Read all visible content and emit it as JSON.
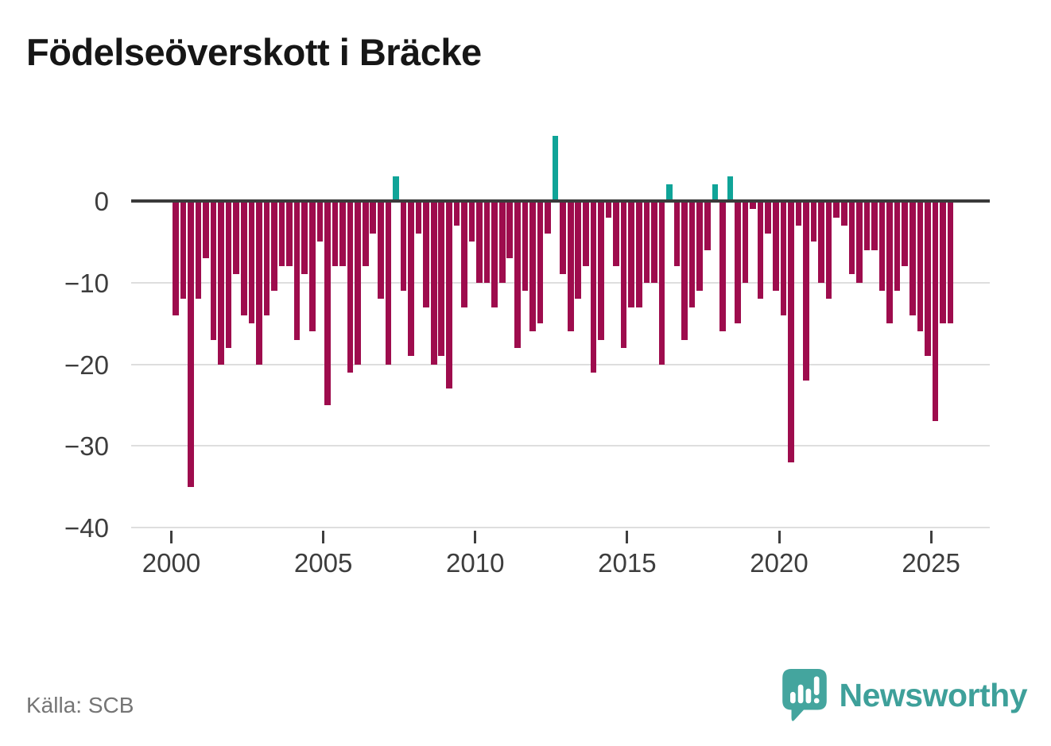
{
  "title": "Födelseöverskott i Bräcke",
  "source": "Källa: SCB",
  "brand": {
    "name": "Newsworthy",
    "color": "#3ea09a"
  },
  "chart_data": {
    "type": "bar",
    "title": "Födelseöverskott i Bräcke",
    "xlabel": "",
    "ylabel": "",
    "frequency": "quarterly",
    "start_year": 2000,
    "start_quarter": 1,
    "x_tick_labels": [
      "2000",
      "2005",
      "2010",
      "2015",
      "2020",
      "2025"
    ],
    "y_tick_labels": [
      "0",
      "−10",
      "−20",
      "−30",
      "−40"
    ],
    "ylim": [
      -40,
      8
    ],
    "grid": true,
    "legend": false,
    "colors": {
      "negative": "#9e0c4d",
      "positive": "#10a498"
    },
    "values": [
      -14,
      -12,
      -35,
      -12,
      -7,
      -17,
      -20,
      -18,
      -9,
      -14,
      -15,
      -20,
      -14,
      -11,
      -8,
      -8,
      -17,
      -9,
      -16,
      -5,
      -25,
      -8,
      -8,
      -21,
      -20,
      -8,
      -4,
      -12,
      -20,
      3,
      -11,
      -19,
      -4,
      -13,
      -20,
      -19,
      -23,
      -3,
      -13,
      -5,
      -10,
      -10,
      -13,
      -10,
      -7,
      -18,
      -11,
      -16,
      -15,
      -4,
      8,
      -9,
      -16,
      -12,
      -8,
      -21,
      -17,
      -2,
      -8,
      -18,
      -13,
      -13,
      -10,
      -10,
      -20,
      2,
      -8,
      -17,
      -13,
      -11,
      -6,
      2,
      -16,
      3,
      -15,
      -10,
      -1,
      -12,
      -4,
      -11,
      -14,
      -32,
      -3,
      -22,
      -5,
      -10,
      -12,
      -2,
      -3,
      -9,
      -10,
      -6,
      -6,
      -11,
      -15,
      -11,
      -8,
      -14,
      -16,
      -19,
      -27,
      -15,
      -15
    ]
  }
}
